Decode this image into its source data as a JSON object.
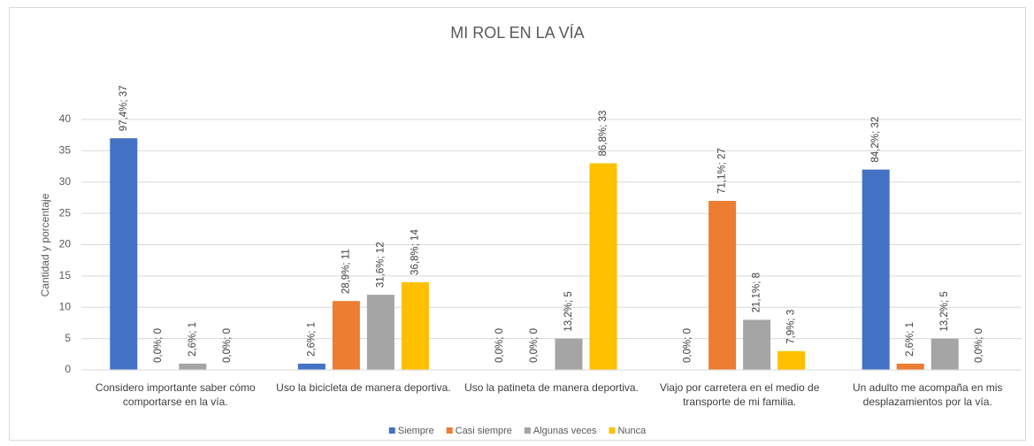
{
  "chart_data": {
    "type": "bar",
    "title": "MI ROL EN LA VÍA",
    "y_label": "Cantidad y porcentaje",
    "categories": [
      "Considero importante saber cómo comportarse en la vía.",
      "Uso la bicicleta de manera deportiva.",
      "Uso la patineta de manera deportiva.",
      "Viajo por carretera en el medio de transporte de mi familia.",
      "Un adulto me acompaña en mis desplazamientos por la vía."
    ],
    "series": [
      {
        "name": "Siempre",
        "color": "#4472c4",
        "values": [
          37,
          1,
          0,
          0,
          32
        ],
        "value_labels": [
          "97,4%; 37",
          "2,6%; 1",
          "0,0%; 0",
          "0,0%; 0",
          "84,2%; 32"
        ]
      },
      {
        "name": "Casi siempre",
        "color": "#ed7d31",
        "values": [
          0,
          11,
          0,
          27,
          1
        ],
        "value_labels": [
          "0,0%; 0",
          "28,9%; 11",
          "0,0%; 0",
          "71,1%; 27",
          "2,6%; 1"
        ]
      },
      {
        "name": "Algunas veces",
        "color": "#a5a5a5",
        "values": [
          1,
          12,
          5,
          8,
          5
        ],
        "value_labels": [
          "2,6%; 1",
          "31,6%; 12",
          "13,2%; 5",
          "21,1%; 8",
          "13,2%; 5"
        ]
      },
      {
        "name": "Nunca",
        "color": "#ffc000",
        "values": [
          0,
          14,
          33,
          3,
          0
        ],
        "value_labels": [
          "0,0%; 0",
          "36,8%; 14",
          "86,8%; 33",
          "7,9%; 3",
          "0,0%; 0"
        ]
      }
    ],
    "ylim": [
      0,
      40
    ],
    "yticks": [
      0,
      5,
      10,
      15,
      20,
      25,
      30,
      35,
      40
    ],
    "grid": true,
    "legend": "bottom"
  }
}
